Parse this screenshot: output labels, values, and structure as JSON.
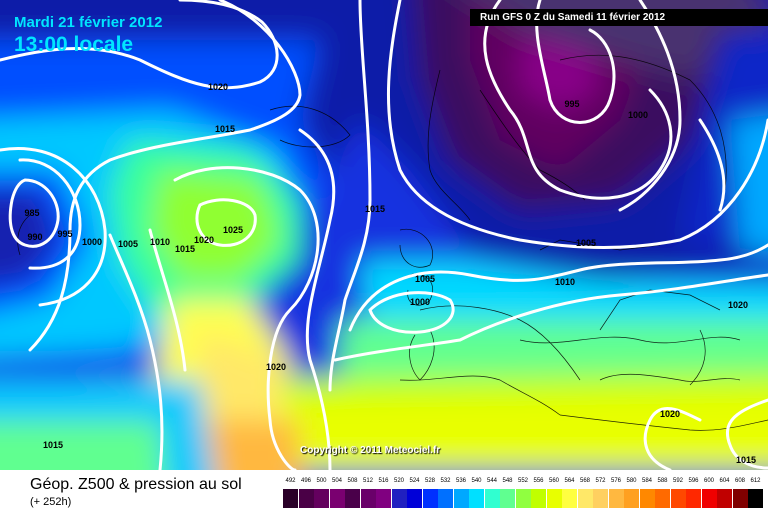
{
  "header": {
    "date": "Mardi 21 février 2012",
    "time": "13:00 locale",
    "run": "Run GFS 0 Z du Samedi 11 février 2012"
  },
  "copyright": "Copyright © 2011 Meteociel.fr",
  "footer": {
    "title": "Géop. Z500 & pression au sol",
    "subtitle": "(+ 252h)"
  },
  "isobar_labels": [
    "1020",
    "1015",
    "995",
    "1000",
    "985",
    "990",
    "995",
    "1000",
    "1005",
    "1010",
    "1015",
    "1020",
    "1025",
    "1015",
    "1005",
    "1000",
    "1010",
    "1005",
    "1020",
    "1020",
    "1020",
    "1015",
    "1015"
  ],
  "scale": {
    "labels": [
      "492",
      "496",
      "500",
      "504",
      "508",
      "512",
      "516",
      "520",
      "524",
      "528",
      "532",
      "536",
      "540",
      "544",
      "548",
      "552",
      "556",
      "560",
      "564",
      "568",
      "572",
      "576",
      "580",
      "584",
      "588",
      "592",
      "596",
      "600",
      "604",
      "608",
      "612"
    ],
    "colors": [
      "#2a0028",
      "#4a0046",
      "#64005e",
      "#7a0070",
      "#4a004a",
      "#6a006a",
      "#800080",
      "#2020c0",
      "#0000d8",
      "#0030ff",
      "#0070ff",
      "#00a8ff",
      "#00e0ff",
      "#30ffd0",
      "#60ff90",
      "#90ff40",
      "#c0ff00",
      "#e8ff00",
      "#ffff40",
      "#ffe868",
      "#ffd060",
      "#ffb840",
      "#ffa020",
      "#ff8800",
      "#ff6a00",
      "#ff4800",
      "#ff2800",
      "#f00000",
      "#c00000",
      "#800000",
      "#000000"
    ]
  }
}
